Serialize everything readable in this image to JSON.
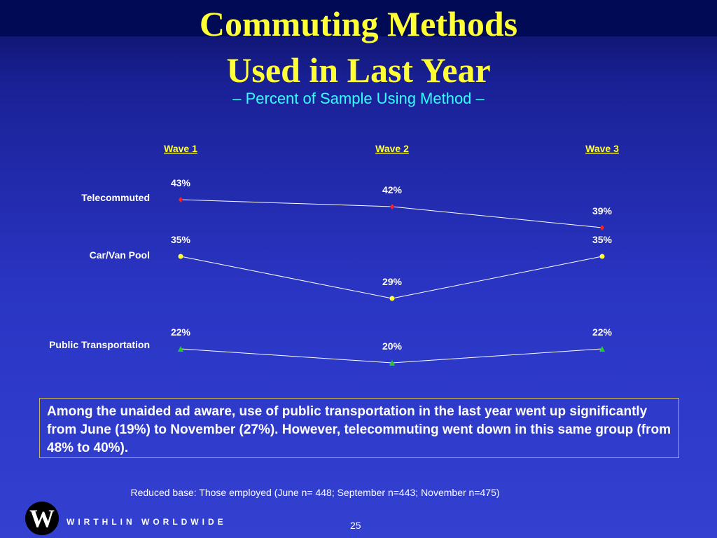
{
  "slide": {
    "title_line1": "Commuting Methods",
    "title_line2": "Used in Last Year",
    "subtitle": "– Percent of Sample Using Method –",
    "callout": "Among the unaided ad aware, use of public transportation in the last year went up significantly from June (19%) to November (27%).  However, telecommuting went down in this same group (from 48% to 40%).",
    "footnote": "Reduced base:  Those employed (June n= 448; September n=443; November n=475)",
    "logo_letter": "W",
    "brand": "WIRTHLIN WORLDWIDE",
    "page_number": "25"
  },
  "colors": {
    "background": "#2a35c4",
    "title": "#ffff33",
    "subtitle": "#33ffff",
    "header_labels": "#ffff33",
    "lines": "#ffffff",
    "telecommuted_marker": "#ff2020",
    "carvan_marker": "#ffff33",
    "public_marker": "#22cc22"
  },
  "chart_data": {
    "type": "line",
    "categories": [
      "Wave 1",
      "Wave 2",
      "Wave 3"
    ],
    "series": [
      {
        "name": "Telecommuted",
        "values": [
          43,
          42,
          39
        ],
        "labels": [
          "43%",
          "42%",
          "39%"
        ],
        "marker": "diamond"
      },
      {
        "name": "Car/Van Pool",
        "values": [
          35,
          29,
          35
        ],
        "labels": [
          "35%",
          "29%",
          "35%"
        ],
        "marker": "circle"
      },
      {
        "name": "Public Transportation",
        "values": [
          22,
          20,
          22
        ],
        "labels": [
          "22%",
          "20%",
          "22%"
        ],
        "marker": "triangle"
      }
    ],
    "ylim": [
      0,
      45
    ],
    "grid": false,
    "legend": "none"
  }
}
